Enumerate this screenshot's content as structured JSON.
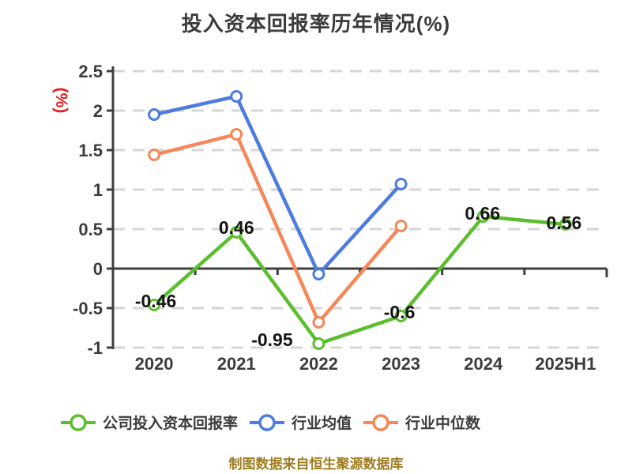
{
  "footer": "制图数据来自恒生聚源数据库",
  "colors": {
    "company_series": "#5BBE2D",
    "industry_mean_series": "#4D7CE0",
    "industry_median_series": "#F5875A",
    "axis_name": "#E02020",
    "footer": "#A07C1E",
    "axis": "#3F3F3F",
    "grid": "#D6D6D6",
    "data_label": "#141414"
  },
  "chart_data": {
    "type": "line",
    "title": "投入资本回报率历年情况(%)",
    "xlabel": "",
    "ylabel": "(%)",
    "categories": [
      "2020",
      "2021",
      "2022",
      "2023",
      "2024",
      "2025H1"
    ],
    "ylim": [
      -1,
      2.5
    ],
    "yticks": [
      2.5,
      2,
      1.5,
      1,
      0.5,
      0,
      -0.5,
      -1
    ],
    "grid": "horizontal-dashed",
    "legend_position": "bottom",
    "marker": "circle-white-fill",
    "series": [
      {
        "name": "公司投入资本回报率",
        "color": "#5BBE2D",
        "values": [
          -0.46,
          0.46,
          -0.95,
          -0.6,
          0.66,
          0.56
        ],
        "labels": [
          "-0.46",
          "0.46",
          "-0.95",
          "-0.6",
          "0.66",
          "0.56"
        ]
      },
      {
        "name": "行业均值",
        "color": "#4D7CE0",
        "values": [
          1.95,
          2.18,
          -0.07,
          1.07,
          null,
          null
        ],
        "labels": null
      },
      {
        "name": "行业中位数",
        "color": "#F5875A",
        "values": [
          1.44,
          1.7,
          -0.68,
          0.54,
          null,
          null
        ],
        "labels": null
      }
    ]
  }
}
